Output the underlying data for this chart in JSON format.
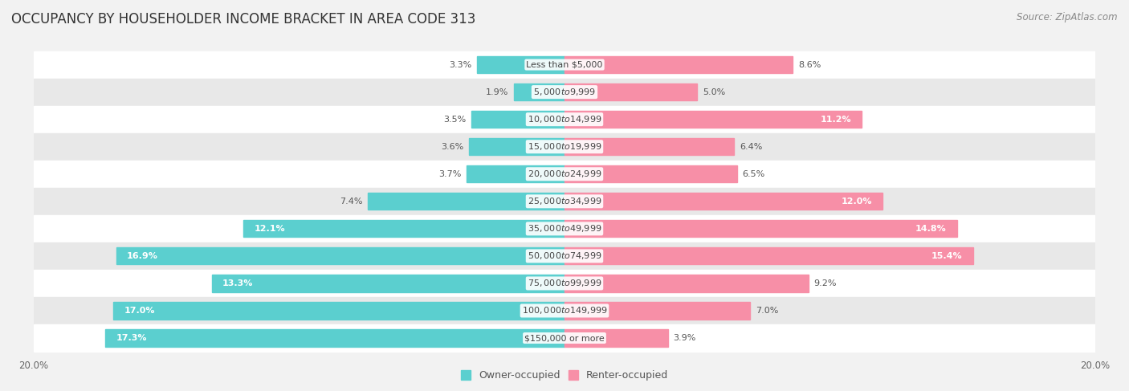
{
  "title": "OCCUPANCY BY HOUSEHOLDER INCOME BRACKET IN AREA CODE 313",
  "source": "Source: ZipAtlas.com",
  "categories": [
    "Less than $5,000",
    "$5,000 to $9,999",
    "$10,000 to $14,999",
    "$15,000 to $19,999",
    "$20,000 to $24,999",
    "$25,000 to $34,999",
    "$35,000 to $49,999",
    "$50,000 to $74,999",
    "$75,000 to $99,999",
    "$100,000 to $149,999",
    "$150,000 or more"
  ],
  "owner_values": [
    3.3,
    1.9,
    3.5,
    3.6,
    3.7,
    7.4,
    12.1,
    16.9,
    13.3,
    17.0,
    17.3
  ],
  "renter_values": [
    8.6,
    5.0,
    11.2,
    6.4,
    6.5,
    12.0,
    14.8,
    15.4,
    9.2,
    7.0,
    3.9
  ],
  "owner_color": "#5BCFCF",
  "renter_color": "#F78FA7",
  "axis_limit": 20.0,
  "background_color": "#f2f2f2",
  "row_color_even": "#ffffff",
  "row_color_odd": "#e8e8e8",
  "title_fontsize": 12,
  "label_fontsize": 8.0,
  "tick_fontsize": 8.5,
  "legend_fontsize": 9,
  "source_fontsize": 8.5
}
